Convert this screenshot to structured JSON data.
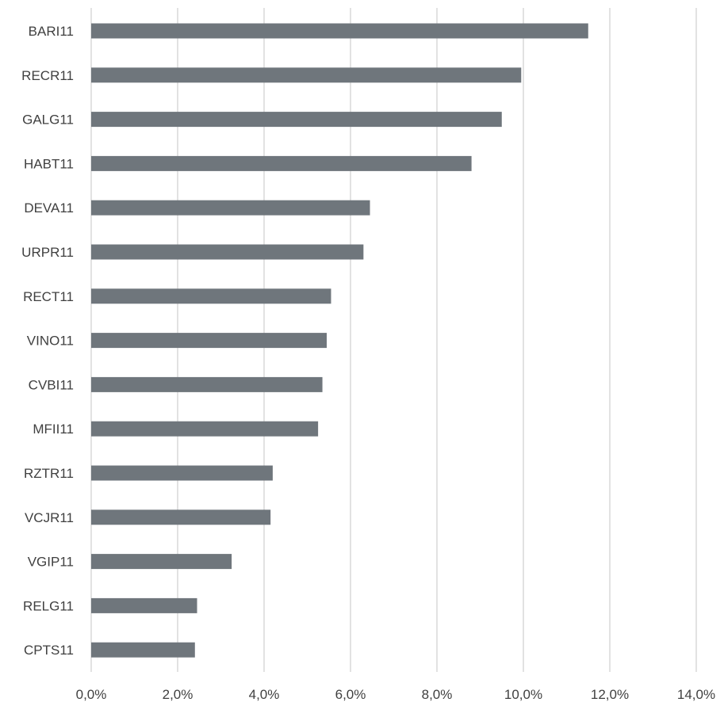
{
  "chart_data": {
    "type": "bar",
    "orientation": "horizontal",
    "title": "",
    "xlabel": "",
    "ylabel": "",
    "categories": [
      "BARI11",
      "RECR11",
      "GALG11",
      "HABT11",
      "DEVA11",
      "URPR11",
      "RECT11",
      "VINO11",
      "CVBI11",
      "MFII11",
      "RZTR11",
      "VCJR11",
      "VGIP11",
      "RELG11",
      "CPTS11"
    ],
    "values": [
      11.5,
      9.95,
      9.5,
      8.8,
      6.45,
      6.3,
      5.55,
      5.45,
      5.35,
      5.25,
      4.2,
      4.15,
      3.25,
      2.45,
      2.4
    ],
    "xlim": [
      0,
      14
    ],
    "xticks": [
      0,
      2,
      4,
      6,
      8,
      10,
      12,
      14
    ],
    "xtick_labels": [
      "0,0%",
      "2,0%",
      "4,0%",
      "6,0%",
      "8,0%",
      "10,0%",
      "12,0%",
      "14,0%"
    ],
    "grid": "vertical",
    "legend": "none",
    "colors": {
      "bar": "#6f767c",
      "grid": "#d9d9d9",
      "text": "#404040"
    }
  }
}
